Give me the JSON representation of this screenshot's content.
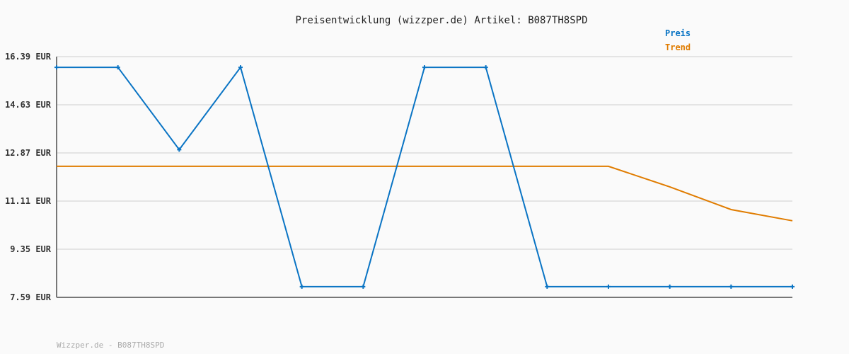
{
  "chart_data": {
    "type": "line",
    "title": "Preisentwicklung (wizzper.de) Artikel: B087TH8SPD",
    "ylim": [
      7.59,
      16.39
    ],
    "yticks": [
      "16.39 EUR",
      "14.63 EUR",
      "12.87 EUR",
      "11.11 EUR",
      "9.35 EUR",
      "7.59 EUR"
    ],
    "ytick_values": [
      16.39,
      14.63,
      12.87,
      11.11,
      9.35,
      7.59
    ],
    "grid": true,
    "legend_placement": "top-right",
    "series": [
      {
        "name": "Preis",
        "color": "#0a74c4",
        "markers": true,
        "values": [
          16.0,
          16.0,
          12.99,
          16.0,
          7.98,
          7.98,
          16.0,
          16.0,
          7.98,
          7.98,
          7.98,
          7.98,
          7.98
        ]
      },
      {
        "name": "Trend",
        "color": "#e07c00",
        "markers": false,
        "values": [
          12.38,
          12.38,
          12.38,
          12.38,
          12.38,
          12.38,
          12.38,
          12.38,
          12.38,
          12.38,
          11.63,
          10.8,
          10.39
        ]
      }
    ],
    "footer": "Wizzper.de - B087TH8SPD"
  }
}
